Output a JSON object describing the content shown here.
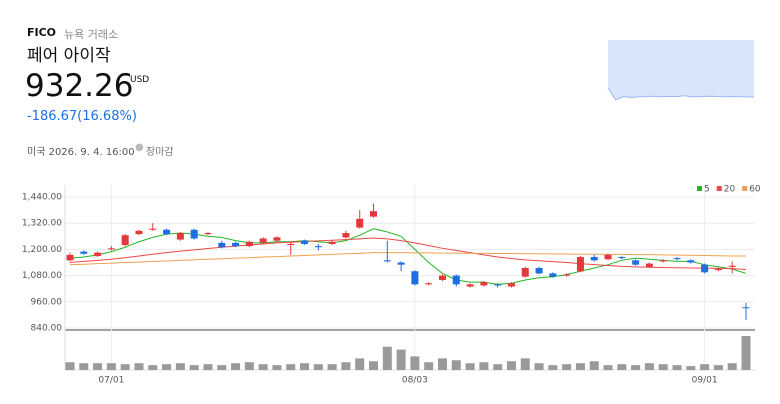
{
  "header": {
    "ticker": "FICO",
    "exchange": "뉴욕 거래소",
    "name": "페어 아이작",
    "price": "932.26",
    "currency": "USD",
    "change": "-186.67(16.68%)",
    "timestamp": "미국 2026. 9. 4. 16:00",
    "status": "장마감"
  },
  "chart_data": [
    {
      "type": "candlestick",
      "categories": [
        null,
        null,
        null,
        "07/01",
        null,
        null,
        null,
        null,
        null,
        null,
        null,
        null,
        null,
        null,
        null,
        null,
        null,
        null,
        null,
        null,
        null,
        null,
        null,
        null,
        null,
        "08/03",
        null,
        null,
        null,
        null,
        null,
        null,
        null,
        null,
        null,
        null,
        null,
        null,
        null,
        null,
        null,
        null,
        null,
        null,
        null,
        null,
        "09/01",
        null,
        null,
        null
      ],
      "open": [
        1150,
        1190,
        1170,
        1200,
        1220,
        1270,
        1290,
        1290,
        1245,
        1290,
        1270,
        1230,
        1230,
        1215,
        1230,
        1240,
        1220,
        1240,
        1215,
        1225,
        1255,
        1300,
        1350,
        1150,
        1140,
        1100,
        1040,
        1060,
        1080,
        1030,
        1035,
        1040,
        1030,
        1075,
        1115,
        1090,
        1080,
        1100,
        1165,
        1155,
        1165,
        1150,
        1120,
        1145,
        1160,
        1150,
        1130,
        1105,
        1120,
        935
      ],
      "high": [
        1185,
        1195,
        1190,
        1215,
        1270,
        1290,
        1320,
        1295,
        1280,
        1295,
        1280,
        1240,
        1235,
        1240,
        1255,
        1260,
        1235,
        1245,
        1225,
        1240,
        1285,
        1380,
        1410,
        1240,
        1145,
        1105,
        1050,
        1085,
        1085,
        1045,
        1055,
        1045,
        1050,
        1120,
        1120,
        1095,
        1090,
        1170,
        1175,
        1180,
        1170,
        1155,
        1140,
        1155,
        1165,
        1155,
        1135,
        1115,
        1145,
        955
      ],
      "low": [
        1145,
        1175,
        1165,
        1195,
        1215,
        1265,
        1285,
        1265,
        1240,
        1245,
        1265,
        1205,
        1210,
        1210,
        1225,
        1235,
        1175,
        1220,
        1195,
        1220,
        1250,
        1295,
        1345,
        1140,
        1100,
        1035,
        1035,
        1055,
        1030,
        1025,
        1030,
        1025,
        1025,
        1070,
        1085,
        1070,
        1075,
        1095,
        1145,
        1150,
        1155,
        1125,
        1115,
        1140,
        1150,
        1135,
        1090,
        1100,
        1090,
        877
      ],
      "close": [
        1175,
        1180,
        1185,
        1205,
        1265,
        1285,
        1295,
        1270,
        1275,
        1250,
        1275,
        1210,
        1215,
        1235,
        1250,
        1255,
        1225,
        1225,
        1210,
        1235,
        1275,
        1340,
        1375,
        1145,
        1130,
        1040,
        1045,
        1080,
        1040,
        1040,
        1050,
        1035,
        1045,
        1115,
        1090,
        1075,
        1085,
        1165,
        1150,
        1175,
        1160,
        1130,
        1135,
        1150,
        1155,
        1140,
        1095,
        1110,
        1125,
        932.26
      ],
      "up_color": "#e5383b",
      "down_color": "#1d6fe0",
      "series": [
        {
          "name": "5",
          "color": "#23b623",
          "values": [
            1160,
            1165,
            1175,
            1190,
            1210,
            1235,
            1255,
            1270,
            1275,
            1270,
            1260,
            1255,
            1240,
            1230,
            1230,
            1235,
            1235,
            1240,
            1235,
            1230,
            1240,
            1265,
            1295,
            1280,
            1260,
            1200,
            1140,
            1090,
            1060,
            1050,
            1050,
            1040,
            1045,
            1060,
            1070,
            1075,
            1085,
            1100,
            1115,
            1130,
            1150,
            1160,
            1155,
            1150,
            1145,
            1145,
            1130,
            1120,
            1110,
            1090
          ]
        },
        {
          "name": "20",
          "color": "#e9484b",
          "values": [
            1140,
            1145,
            1150,
            1155,
            1162,
            1170,
            1178,
            1185,
            1192,
            1198,
            1204,
            1210,
            1215,
            1220,
            1225,
            1230,
            1233,
            1236,
            1239,
            1242,
            1245,
            1248,
            1252,
            1248,
            1240,
            1230,
            1218,
            1205,
            1195,
            1185,
            1175,
            1165,
            1158,
            1152,
            1148,
            1144,
            1140,
            1135,
            1130,
            1126,
            1122,
            1120,
            1118,
            1117,
            1116,
            1115,
            1114,
            1113,
            1112,
            1108
          ]
        },
        {
          "name": "60",
          "color": "#f0a050",
          "values": [
            1130,
            1132,
            1135,
            1137,
            1140,
            1142,
            1145,
            1147,
            1150,
            1152,
            1155,
            1157,
            1160,
            1162,
            1165,
            1167,
            1170,
            1172,
            1175,
            1177,
            1180,
            1182,
            1185,
            1185,
            1185,
            1184,
            1184,
            1183,
            1183,
            1182,
            1182,
            1181,
            1181,
            1180,
            1180,
            1179,
            1179,
            1178,
            1178,
            1177,
            1177,
            1176,
            1176,
            1175,
            1174,
            1173,
            1172,
            1171,
            1170,
            1170
          ]
        }
      ],
      "volume": [
        8,
        7,
        7,
        7,
        6,
        7,
        5,
        6,
        7,
        5,
        6,
        5,
        7,
        8,
        6,
        5,
        6,
        7,
        6,
        6,
        8,
        12,
        9,
        24,
        21,
        14,
        8,
        12,
        10,
        7,
        8,
        6,
        9,
        12,
        7,
        5,
        6,
        7,
        9,
        5,
        6,
        5,
        7,
        6,
        5,
        4,
        6,
        5,
        7,
        35
      ],
      "volume_color": "#9a9a9a",
      "ylim": [
        840,
        1440
      ],
      "yticks": [
        {
          "value": 840,
          "label": "840.00"
        },
        {
          "value": 960,
          "label": "960.00"
        },
        {
          "value": 1080,
          "label": "1,080.00"
        },
        {
          "value": 1200,
          "label": "1,200.00"
        },
        {
          "value": 1320,
          "label": "1,320.00"
        },
        {
          "value": 1440,
          "label": "1,440.00"
        }
      ],
      "grid": true,
      "legend": "top-right"
    },
    {
      "type": "area",
      "values": [
        1190,
        1120,
        1140,
        1135,
        1138,
        1140,
        1142,
        1139,
        1141,
        1140,
        1145,
        1138,
        1140,
        1142,
        1141,
        1139,
        1140,
        1140,
        1138,
        1137
      ],
      "color": "#9bb9ee",
      "fill": "#d8e5fb"
    }
  ]
}
